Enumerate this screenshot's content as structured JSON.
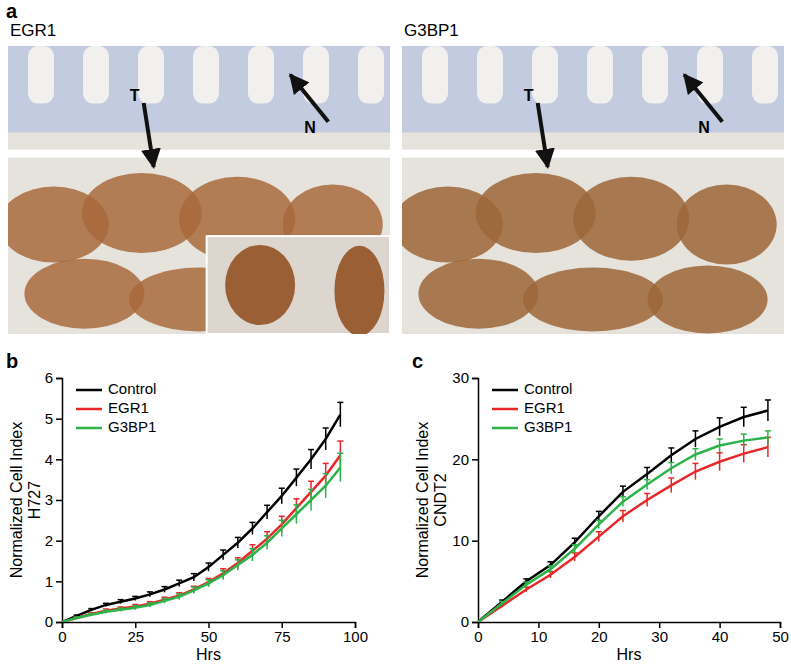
{
  "figure": {
    "panel_labels": [
      "a",
      "b",
      "c"
    ],
    "images": [
      {
        "title": "EGR1",
        "labels": [
          "T",
          "N"
        ]
      },
      {
        "title": "G3BP1",
        "labels": [
          "T",
          "N"
        ]
      }
    ]
  },
  "chart_data": [
    {
      "type": "line",
      "x_label": "Hrs",
      "y_label": [
        "Normalized Cell Index",
        "H727"
      ],
      "x": [
        0,
        5,
        10,
        15,
        20,
        25,
        30,
        35,
        40,
        45,
        50,
        55,
        60,
        65,
        70,
        75,
        80,
        85,
        90,
        95
      ],
      "xlim": [
        0,
        100
      ],
      "xticks": [
        0,
        25,
        50,
        75,
        100
      ],
      "ylim": [
        0,
        6
      ],
      "yticks": [
        0,
        1,
        2,
        3,
        4,
        5,
        6
      ],
      "legend": "upper left",
      "series": [
        {
          "name": "Control",
          "color": "#000000",
          "values": [
            0,
            0.15,
            0.3,
            0.42,
            0.5,
            0.58,
            0.68,
            0.8,
            0.95,
            1.1,
            1.35,
            1.65,
            1.95,
            2.3,
            2.7,
            3.1,
            3.55,
            4.0,
            4.5,
            5.1
          ],
          "errors": [
            0,
            0.02,
            0.03,
            0.04,
            0.05,
            0.05,
            0.06,
            0.07,
            0.08,
            0.09,
            0.1,
            0.12,
            0.13,
            0.15,
            0.17,
            0.19,
            0.21,
            0.24,
            0.27,
            0.3
          ]
        },
        {
          "name": "EGR1",
          "color": "#e8272a",
          "values": [
            0,
            0.1,
            0.2,
            0.28,
            0.33,
            0.38,
            0.45,
            0.55,
            0.65,
            0.8,
            0.98,
            1.2,
            1.45,
            1.75,
            2.05,
            2.4,
            2.8,
            3.2,
            3.6,
            4.1
          ],
          "errors": [
            0,
            0.02,
            0.03,
            0.04,
            0.04,
            0.05,
            0.05,
            0.06,
            0.07,
            0.08,
            0.09,
            0.11,
            0.13,
            0.15,
            0.17,
            0.2,
            0.23,
            0.26,
            0.3,
            0.35
          ]
        },
        {
          "name": "G3BP1",
          "color": "#2db34a",
          "values": [
            0,
            0.1,
            0.18,
            0.25,
            0.3,
            0.35,
            0.42,
            0.52,
            0.62,
            0.78,
            0.95,
            1.15,
            1.4,
            1.65,
            1.95,
            2.3,
            2.65,
            3.0,
            3.35,
            3.8
          ],
          "errors": [
            0,
            0.02,
            0.03,
            0.04,
            0.04,
            0.05,
            0.05,
            0.06,
            0.07,
            0.08,
            0.09,
            0.11,
            0.13,
            0.15,
            0.17,
            0.2,
            0.23,
            0.26,
            0.3,
            0.35
          ]
        }
      ]
    },
    {
      "type": "line",
      "x_label": "Hrs",
      "y_label": [
        "Normalized Cell Index",
        "CNDT2"
      ],
      "x": [
        0,
        4,
        8,
        12,
        16,
        20,
        24,
        28,
        32,
        36,
        40,
        44,
        48
      ],
      "xlim": [
        0,
        50
      ],
      "xticks": [
        0,
        10,
        20,
        30,
        40,
        50
      ],
      "ylim": [
        0,
        30
      ],
      "yticks": [
        0,
        10,
        20,
        30
      ],
      "legend": "upper left",
      "series": [
        {
          "name": "Control",
          "color": "#000000",
          "values": [
            0,
            2.5,
            5,
            7,
            9.8,
            13,
            16,
            18.2,
            20.5,
            22.5,
            24,
            25.2,
            26
          ],
          "errors": [
            0,
            0.2,
            0.3,
            0.4,
            0.5,
            0.6,
            0.7,
            0.8,
            0.9,
            1.0,
            1.1,
            1.2,
            1.3
          ]
        },
        {
          "name": "EGR1",
          "color": "#e8272a",
          "values": [
            0,
            2,
            4,
            5.8,
            8,
            10.5,
            13,
            15,
            16.8,
            18.5,
            19.7,
            20.7,
            21.5
          ],
          "errors": [
            0,
            0.2,
            0.3,
            0.4,
            0.5,
            0.6,
            0.7,
            0.8,
            0.9,
            1.0,
            1.1,
            1.1,
            1.2
          ]
        },
        {
          "name": "G3BP1",
          "color": "#2db34a",
          "values": [
            0,
            2.3,
            4.6,
            6.5,
            9,
            12,
            14.8,
            16.9,
            18.9,
            20.6,
            21.7,
            22.3,
            22.7
          ],
          "errors": [
            0,
            0.2,
            0.3,
            0.4,
            0.5,
            0.5,
            0.6,
            0.6,
            0.7,
            0.7,
            0.8,
            0.8,
            0.8
          ]
        }
      ]
    }
  ]
}
